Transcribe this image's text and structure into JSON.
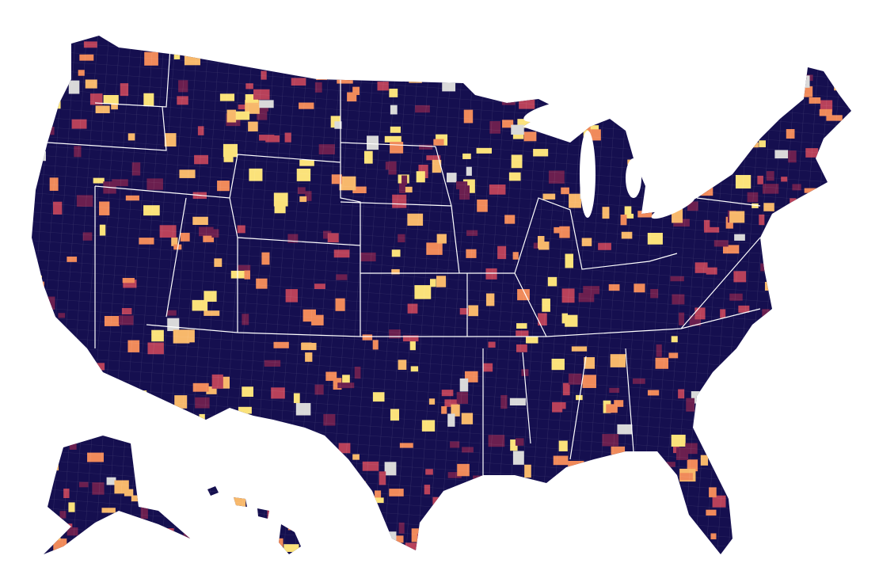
{
  "map": {
    "palette": [
      "#150f4f",
      "#6b1f4f",
      "#b8415a",
      "#f08a5a",
      "#f7b86b",
      "#fbe27a",
      "#d9d9d9"
    ]
  }
}
